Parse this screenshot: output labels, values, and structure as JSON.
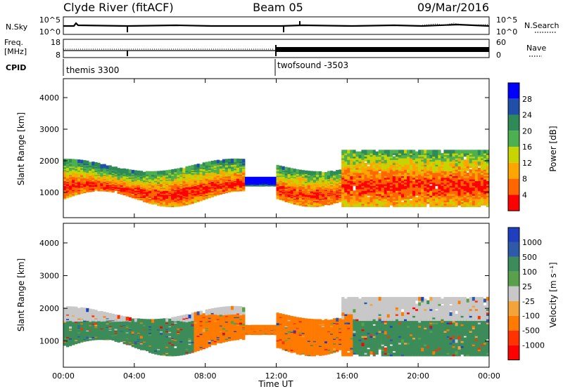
{
  "header": {
    "title_left": "Clyde River (fitACF)",
    "title_center": "Beam 05",
    "title_right": "09/Mar/2016"
  },
  "strip_panels": {
    "nsky_label": "N.Sky",
    "nsky_ticks": [
      "10^5",
      "10^0"
    ],
    "nsearch_label": "N.Search",
    "nsearch_ticks": [
      "10^5",
      "10^0"
    ],
    "freq_label_line1": "Freq.",
    "freq_label_line2": "[MHz]",
    "freq_ticks": [
      "18",
      "8"
    ],
    "nave_label": "Nave",
    "nave_ticks": [
      "60",
      "0"
    ],
    "cpid_label": "CPID",
    "cpid_segments": [
      {
        "name": "themis 3300"
      },
      {
        "name": "twofsound -3503"
      }
    ]
  },
  "colors": {
    "power_scale": [
      "#0000ff",
      "#1f4fa8",
      "#2e8b57",
      "#4caf50",
      "#c8d400",
      "#ffa500",
      "#ff6600",
      "#ff0000"
    ],
    "velocity_scale": [
      "#1f3fbf",
      "#2e5aa8",
      "#3c8c5a",
      "#5aa04a",
      "#c8c8c8",
      "#f2a33a",
      "#ff7a00",
      "#ff3300",
      "#ff0000"
    ]
  },
  "chart_data": [
    {
      "type": "heatmap",
      "name": "power-panel",
      "title": "",
      "xlabel": "",
      "ylabel": "Slant Range [km]",
      "colorbar_label": "Power [dB]",
      "colorbar_ticks": [
        "28",
        "24",
        "20",
        "16",
        "12",
        "8",
        "4"
      ],
      "y_ticks": [
        "4000",
        "3000",
        "2000",
        "1000"
      ],
      "ylim": [
        200,
        4600
      ],
      "x_ticks": [
        "00:00",
        "04:00",
        "08:00",
        "12:00",
        "16:00",
        "20:00",
        "00:00"
      ]
    },
    {
      "type": "heatmap",
      "name": "velocity-panel",
      "title": "",
      "xlabel": "Time UT",
      "ylabel": "Slant Range [km]",
      "colorbar_label": "Velocity [m s⁻¹]",
      "colorbar_ticks": [
        "1000",
        "500",
        "100",
        "25",
        "-25",
        "-100",
        "-500",
        "-1000"
      ],
      "y_ticks": [
        "4000",
        "3000",
        "2000",
        "1000"
      ],
      "ylim": [
        200,
        4600
      ],
      "x_ticks": [
        "00:00",
        "04:00",
        "08:00",
        "12:00",
        "16:00",
        "20:00",
        "00:00"
      ]
    }
  ]
}
